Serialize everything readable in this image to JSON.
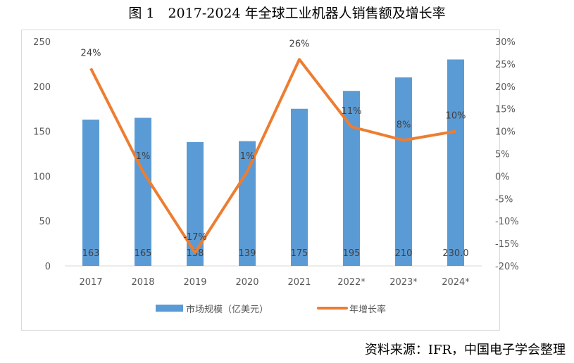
{
  "title": "图 1　2017-2024 年全球工业机器人销售额及增长率",
  "source": "资料来源：IFR，中国电子学会整理",
  "chart_data": {
    "type": "bar+line",
    "categories": [
      "2017",
      "2018",
      "2019",
      "2020",
      "2021",
      "2022*",
      "2023*",
      "2024*"
    ],
    "series": [
      {
        "name": "市场规模（亿美元）",
        "type": "bar",
        "axis": "left",
        "color": "#5b9bd5",
        "values": [
          163,
          165,
          138,
          139,
          175,
          195,
          210,
          230.0
        ],
        "labels": [
          "163",
          "165",
          "138",
          "139",
          "175",
          "195",
          "210",
          "230.0"
        ]
      },
      {
        "name": "年增长率",
        "type": "line",
        "axis": "right",
        "color": "#ed7d31",
        "values": [
          24,
          1,
          -17,
          1,
          26,
          11,
          8,
          10
        ],
        "labels": [
          "24%",
          "1%",
          "-17%",
          "1%",
          "26%",
          "11%",
          "8%",
          "10%"
        ]
      }
    ],
    "y_left": {
      "range": [
        0,
        250
      ],
      "ticks": [
        "0",
        "50",
        "100",
        "150",
        "200",
        "250"
      ]
    },
    "y_right": {
      "range": [
        -20,
        30
      ],
      "ticks": [
        "-20%",
        "-15%",
        "-10%",
        "-5%",
        "0%",
        "5%",
        "10%",
        "15%",
        "20%",
        "25%",
        "30%"
      ]
    },
    "grid": false,
    "legend": "bottom"
  }
}
